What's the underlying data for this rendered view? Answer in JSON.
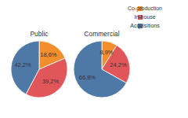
{
  "chart_data": [
    {
      "type": "pie",
      "title": "Public",
      "categories": [
        "Co-production",
        "In-house",
        "Acquisitions"
      ],
      "values": [
        18.6,
        39.2,
        42.2
      ],
      "value_labels": [
        "18,6%",
        "39,2%",
        "42,2%"
      ],
      "colors": [
        "#f28e2b",
        "#e15759",
        "#4e79a7"
      ],
      "data_labels": true
    },
    {
      "type": "pie",
      "title": "Commercial",
      "categories": [
        "Co-production",
        "In-house",
        "Acquisitions"
      ],
      "values": [
        8.9,
        24.2,
        66.8
      ],
      "value_labels": [
        "8,9%",
        "24,2%",
        "66,8%"
      ],
      "colors": [
        "#f28e2b",
        "#e15759",
        "#4e79a7"
      ],
      "data_labels": true,
      "legend": "top-right"
    }
  ]
}
